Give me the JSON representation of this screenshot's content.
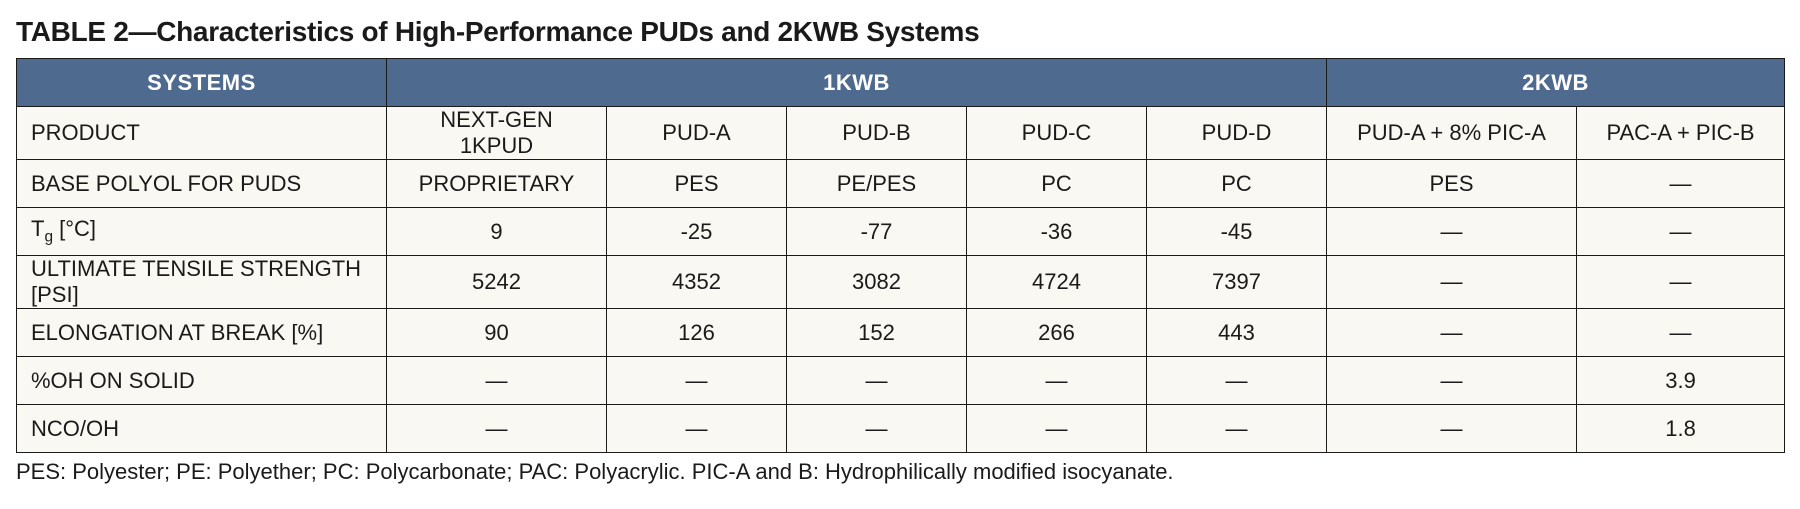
{
  "title": "TABLE 2—Characteristics of High-Performance PUDs and 2KWB Systems",
  "header": {
    "systems": "SYSTEMS",
    "group1": "1KWB",
    "group2": "2KWB"
  },
  "colors": {
    "header_bg": "#4f6a8f",
    "header_fg": "#ffffff",
    "row_bg": "#faf8f2",
    "border": "#1a1a1a"
  },
  "rows": [
    {
      "label": "PRODUCT",
      "c": [
        "NEXT-GEN 1KPUD",
        "PUD-A",
        "PUD-B",
        "PUD-C",
        "PUD-D",
        "PUD-A + 8% PIC-A",
        "PAC-A + PIC-B"
      ]
    },
    {
      "label": "BASE POLYOL FOR PUDS",
      "c": [
        "PROPRIETARY",
        "PES",
        "PE/PES",
        "PC",
        "PC",
        "PES",
        "—"
      ]
    },
    {
      "label": "Tg [°C]",
      "label_html": "T<sub>g</sub> [°C]",
      "c": [
        "9",
        "-25",
        "-77",
        "-36",
        "-45",
        "—",
        "—"
      ]
    },
    {
      "label": "ULTIMATE TENSILE STRENGTH [PSI]",
      "c": [
        "5242",
        "4352",
        "3082",
        "4724",
        "7397",
        "—",
        "—"
      ]
    },
    {
      "label": "ELONGATION AT BREAK [%]",
      "c": [
        "90",
        "126",
        "152",
        "266",
        "443",
        "—",
        "—"
      ]
    },
    {
      "label": "%OH ON SOLID",
      "c": [
        "—",
        "—",
        "—",
        "—",
        "—",
        "—",
        "3.9"
      ]
    },
    {
      "label": "NCO/OH",
      "c": [
        "—",
        "—",
        "—",
        "—",
        "—",
        "—",
        "1.8"
      ]
    }
  ],
  "footnote": "PES: Polyester; PE: Polyether; PC: Polycarbonate; PAC: Polyacrylic. PIC-A and B: Hydrophilically modified isocyanate.",
  "fontsizes": {
    "title": 28,
    "cell": 22,
    "footnote": 22
  }
}
